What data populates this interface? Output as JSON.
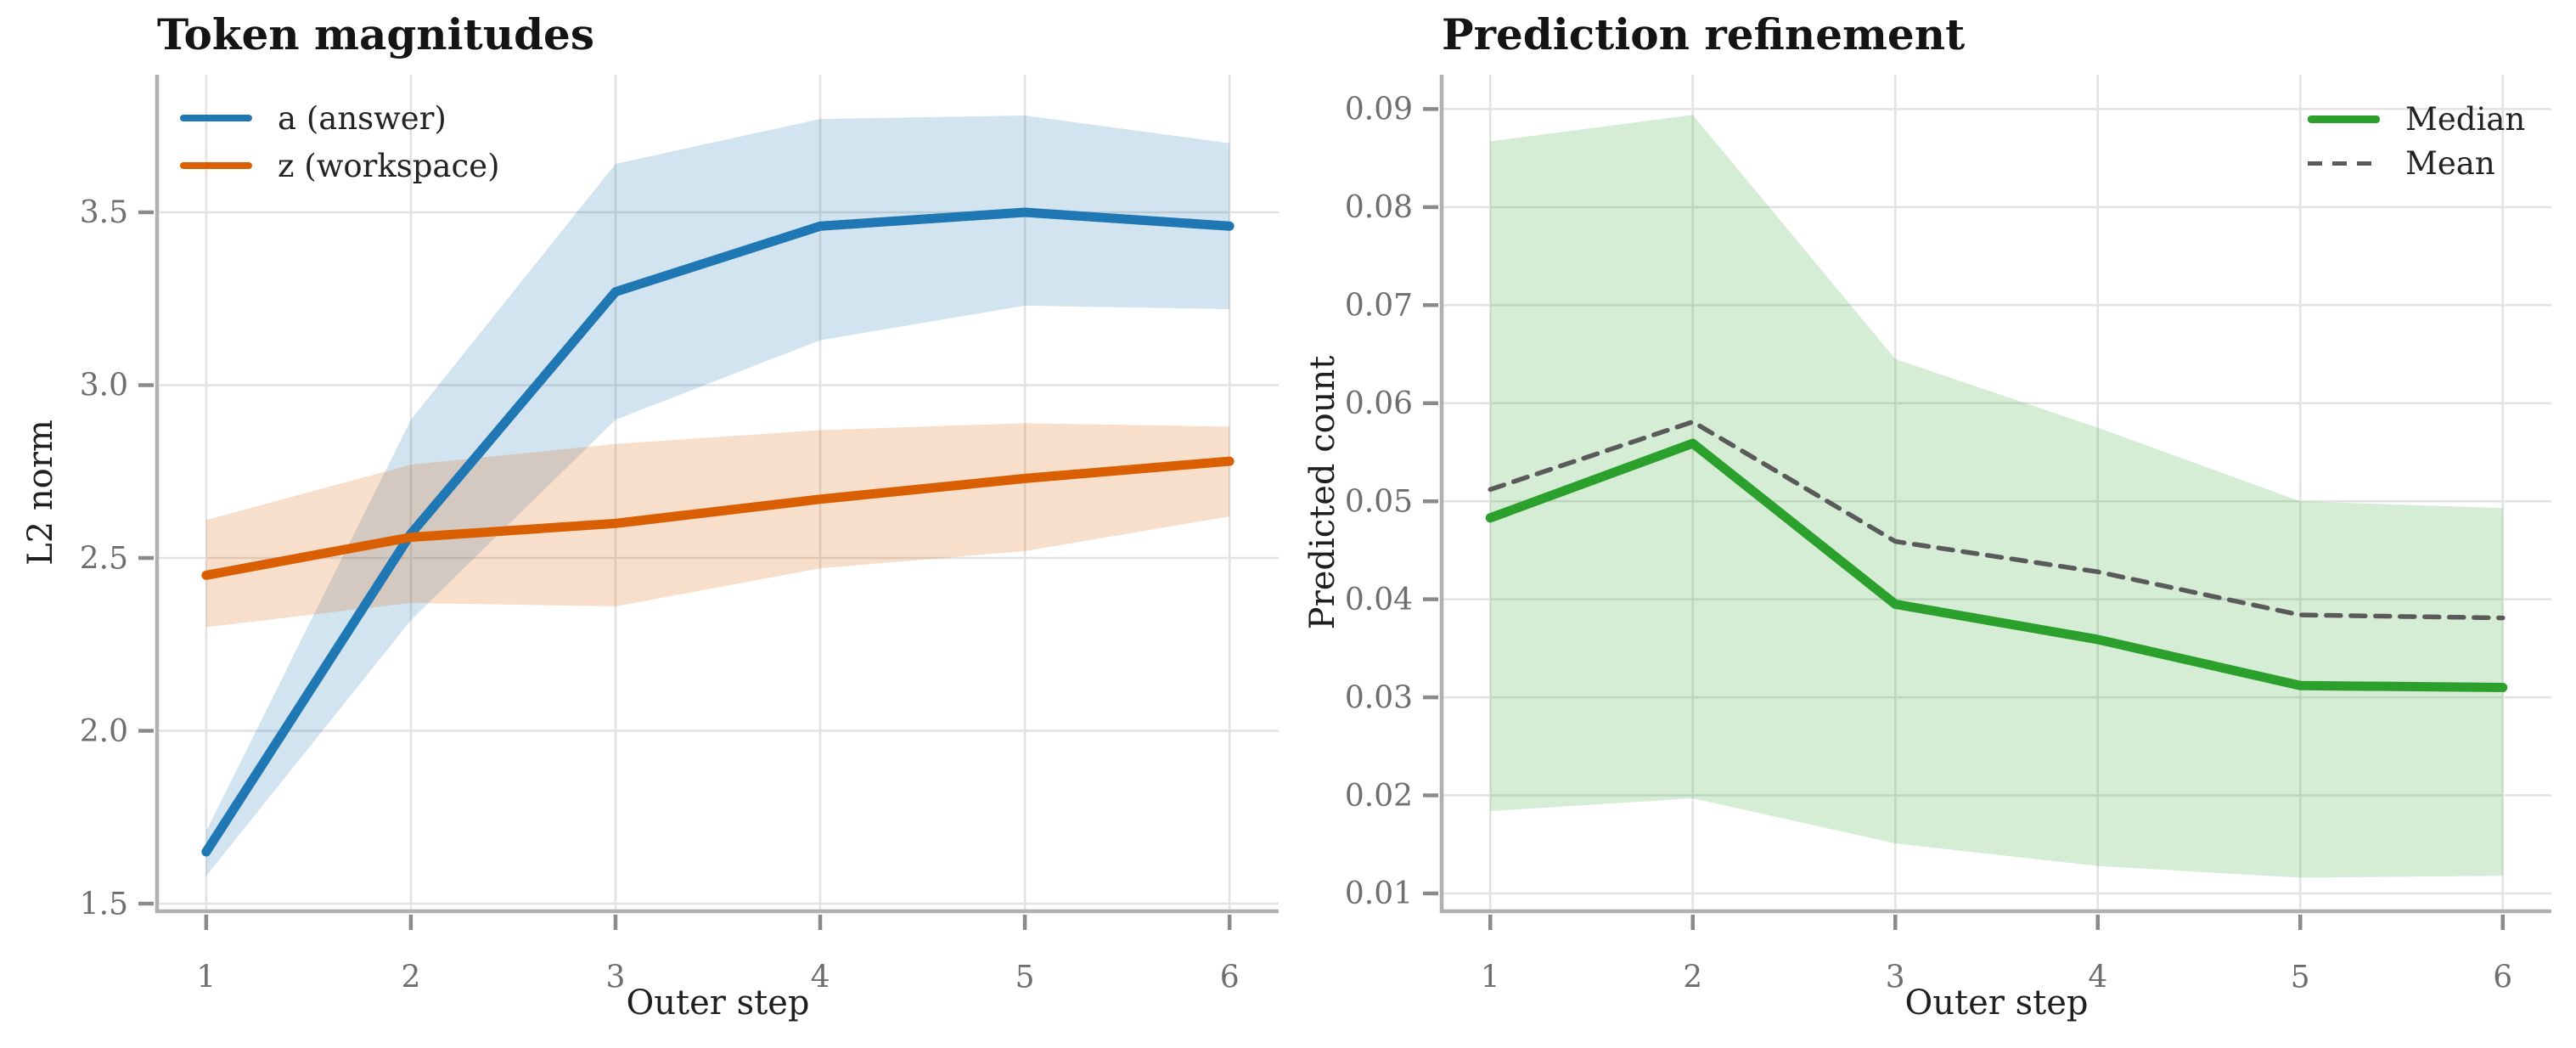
{
  "chart_data": [
    {
      "type": "line",
      "title": "Token magnitudes",
      "xlabel": "Outer step",
      "ylabel": "L2 norm",
      "x": [
        1,
        2,
        3,
        4,
        5,
        6
      ],
      "xticks": [
        "1",
        "2",
        "3",
        "4",
        "5",
        "6"
      ],
      "yticks": [
        {
          "v": 1.5,
          "label": "1.5"
        },
        {
          "v": 2.0,
          "label": "2.0"
        },
        {
          "v": 2.5,
          "label": "2.5"
        },
        {
          "v": 3.0,
          "label": "3.0"
        },
        {
          "v": 3.5,
          "label": "3.5"
        }
      ],
      "xlim": [
        0.76,
        6.24
      ],
      "ylim": [
        1.478,
        3.898
      ],
      "grid": true,
      "legend_position": "top-left",
      "series": [
        {
          "name": "a (answer)",
          "color": "#1f77b4",
          "line_style": "solid",
          "values": [
            1.65,
            2.57,
            3.27,
            3.46,
            3.5,
            3.46
          ],
          "band_lo": [
            1.58,
            2.32,
            2.9,
            3.13,
            3.23,
            3.22
          ],
          "band_hi": [
            1.71,
            2.9,
            3.64,
            3.77,
            3.78,
            3.7
          ]
        },
        {
          "name": "z (workspace)",
          "color": "#d95f02",
          "line_style": "solid",
          "values": [
            2.45,
            2.56,
            2.6,
            2.67,
            2.73,
            2.78
          ],
          "band_lo": [
            2.3,
            2.37,
            2.36,
            2.47,
            2.52,
            2.62
          ],
          "band_hi": [
            2.61,
            2.77,
            2.83,
            2.87,
            2.89,
            2.88
          ]
        }
      ]
    },
    {
      "type": "line",
      "title": "Prediction refinement",
      "xlabel": "Outer step",
      "ylabel": "Predicted count",
      "x": [
        1,
        2,
        3,
        4,
        5,
        6
      ],
      "xticks": [
        "1",
        "2",
        "3",
        "4",
        "5",
        "6"
      ],
      "yticks": [
        {
          "v": 0.01,
          "label": "0.01"
        },
        {
          "v": 0.02,
          "label": "0.02"
        },
        {
          "v": 0.03,
          "label": "0.03"
        },
        {
          "v": 0.04,
          "label": "0.04"
        },
        {
          "v": 0.05,
          "label": "0.05"
        },
        {
          "v": 0.06,
          "label": "0.06"
        },
        {
          "v": 0.07,
          "label": "0.07"
        },
        {
          "v": 0.08,
          "label": "0.08"
        },
        {
          "v": 0.09,
          "label": "0.09"
        }
      ],
      "xlim": [
        0.76,
        6.24
      ],
      "ylim": [
        0.00818,
        0.0935
      ],
      "grid": true,
      "legend_position": "top-right",
      "series": [
        {
          "name": "Median",
          "color": "#2ca02c",
          "line_style": "solid",
          "values": [
            0.0483,
            0.0559,
            0.0395,
            0.0359,
            0.0312,
            0.031
          ],
          "band_lo": [
            0.0184,
            0.0197,
            0.0151,
            0.0128,
            0.0116,
            0.0118
          ],
          "band_hi": [
            0.0867,
            0.0894,
            0.0645,
            0.0575,
            0.05,
            0.0493
          ]
        },
        {
          "name": "Mean",
          "color": "#5a5a5a",
          "line_style": "dashed",
          "values": [
            0.0512,
            0.0581,
            0.0459,
            0.0428,
            0.0384,
            0.0381
          ]
        }
      ]
    }
  ],
  "style": {
    "grid_color": "#e2e2e2",
    "spine_color": "#b0b0b0",
    "tick_color": "#8a8a8a",
    "tick_label_color": "#6e6e6e",
    "band_opacity": "0.2"
  }
}
